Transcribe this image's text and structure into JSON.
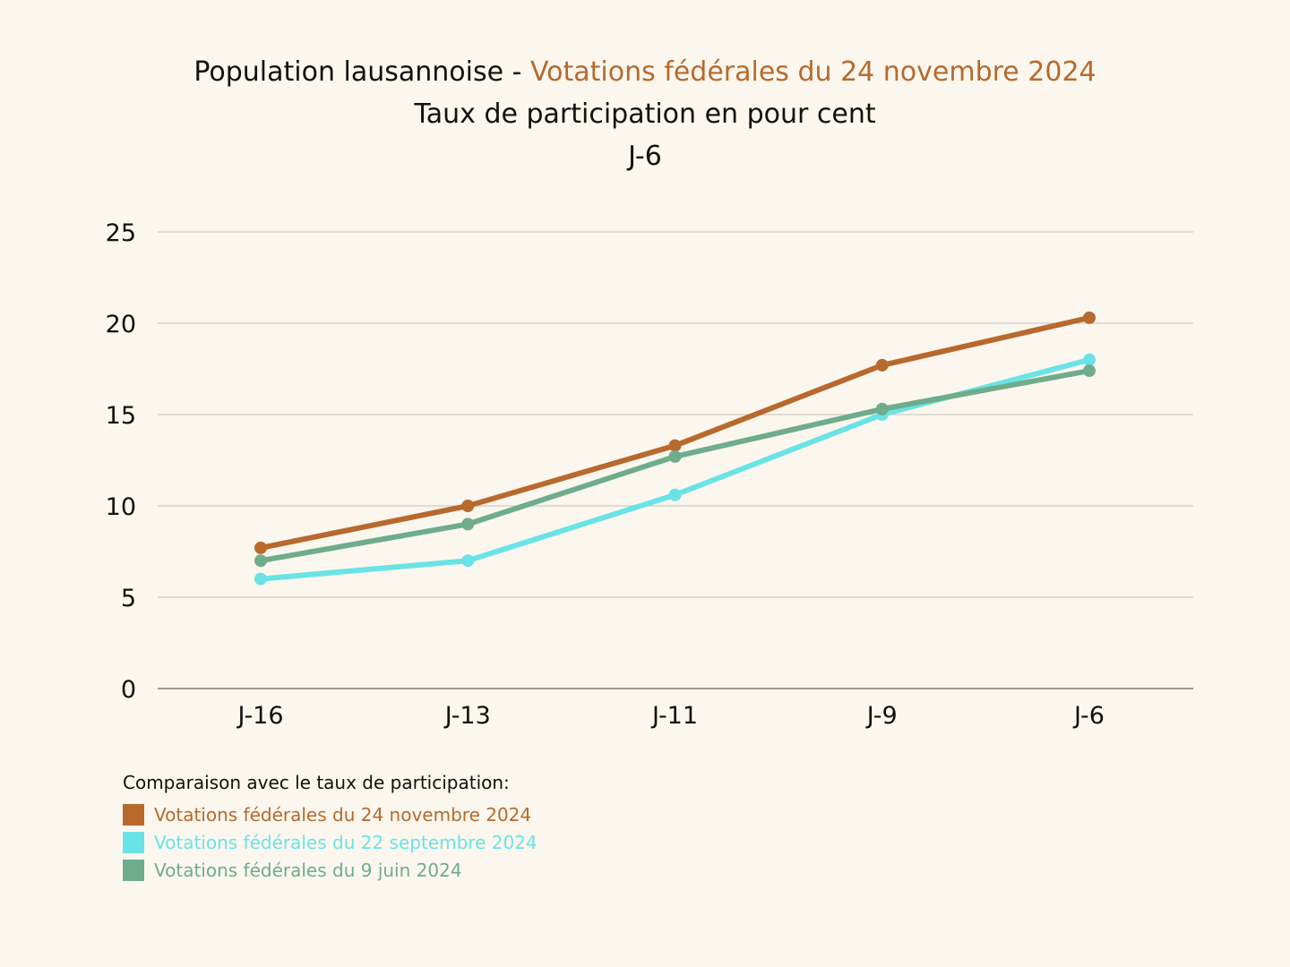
{
  "title": {
    "prefix": "Population lausannoise - ",
    "highlight": "Votations fédérales du 24 novembre 2024",
    "subtitle": "Taux de participation en pour cent",
    "day": "J-6"
  },
  "colors": {
    "background": "#fbf7ee",
    "accent": "#b8692d",
    "grid": "#cfcbc3",
    "axis": "#9a9893"
  },
  "chart_data": {
    "type": "line",
    "title": "Population lausannoise - Votations fédérales du 24 novembre 2024",
    "subtitle": "Taux de participation en pour cent",
    "xlabel": "",
    "ylabel": "",
    "categories": [
      "J-16",
      "J-13",
      "J-11",
      "J-9",
      "J-6"
    ],
    "ylim": [
      0,
      25
    ],
    "yticks": [
      "0",
      "5",
      "10",
      "15",
      "20",
      "25"
    ],
    "grid": true,
    "legend_position": "bottom-left",
    "series": [
      {
        "name": "Votations fédérales du 24 novembre 2024",
        "color": "#b8692d",
        "values": [
          7.7,
          10.0,
          13.3,
          17.7,
          20.3
        ]
      },
      {
        "name": "Votations fédérales du 22 septembre 2024",
        "color": "#6ae3e6",
        "values": [
          6.0,
          7.0,
          10.6,
          15.0,
          18.0
        ]
      },
      {
        "name": "Votations fédérales du 9 juin 2024",
        "color": "#6fac8b",
        "values": [
          7.0,
          9.0,
          12.7,
          15.3,
          17.4
        ]
      }
    ]
  },
  "legend": {
    "title": "Comparaison avec le taux de participation:"
  }
}
